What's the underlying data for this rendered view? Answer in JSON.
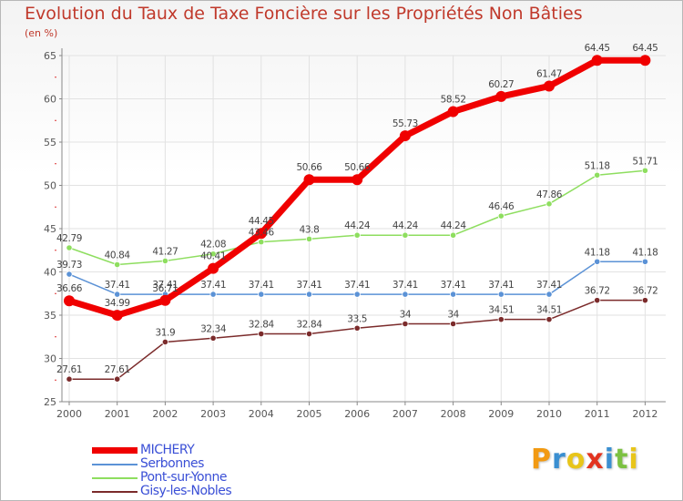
{
  "chart_data": {
    "type": "line",
    "title": "Evolution du Taux de Taxe Foncière sur les Propriétés Non Bâties",
    "ylabel": "(en %)",
    "xlabel": "",
    "x": [
      "2000",
      "2001",
      "2002",
      "2003",
      "2004",
      "2005",
      "2006",
      "2007",
      "2008",
      "2009",
      "2010",
      "2011",
      "2012"
    ],
    "ylim": [
      25,
      65
    ],
    "yticks": [
      25,
      30,
      35,
      40,
      45,
      50,
      55,
      60,
      65
    ],
    "grid": true,
    "legend_position": "bottom-left",
    "series": [
      {
        "name": "Pont-sur-Yonne",
        "color": "#8ede5f",
        "values": [
          42.79,
          40.84,
          41.27,
          42.08,
          43.46,
          43.8,
          44.24,
          44.24,
          44.24,
          46.46,
          47.86,
          51.18,
          51.71
        ],
        "labels": [
          "42.79",
          "40.84",
          "41.27",
          "42.08",
          "43.46",
          "43.8",
          "44.24",
          "44.24",
          "44.24",
          "46.46",
          "47.86",
          "51.18",
          "51.71"
        ]
      },
      {
        "name": "Gisy-les-Nobles",
        "color": "#7b2b2b",
        "values": [
          27.61,
          27.61,
          31.9,
          32.34,
          32.84,
          32.84,
          33.5,
          34,
          34,
          34.51,
          34.51,
          36.72,
          36.72
        ],
        "labels": [
          "27.61",
          "27.61",
          "31.9",
          "32.34",
          "32.84",
          "32.84",
          "33.5",
          "34",
          "34",
          "34.51",
          "34.51",
          "36.72",
          "36.72"
        ]
      },
      {
        "name": "Serbonnes",
        "color": "#5b92d6",
        "values": [
          39.73,
          37.41,
          37.41,
          37.41,
          37.41,
          37.41,
          37.41,
          37.41,
          37.41,
          37.41,
          37.41,
          41.18,
          41.18
        ],
        "labels": [
          "39.73",
          "37.41",
          "37.41",
          "37.41",
          "37.41",
          "37.41",
          "37.41",
          "37.41",
          "37.41",
          "37.41",
          "37.41",
          "41.18",
          "41.18"
        ]
      },
      {
        "name": "MICHERY",
        "color": "#f00000",
        "values": [
          36.66,
          34.99,
          36.71,
          40.41,
          44.45,
          50.66,
          50.66,
          55.73,
          58.52,
          60.27,
          61.47,
          64.45,
          64.45
        ],
        "labels": [
          "36.66",
          "34.99",
          "36.71",
          "40.41",
          "44.45",
          "50.66",
          "50.66",
          "55.73",
          "58.52",
          "60.27",
          "61.47",
          "64.45",
          "64.45"
        ]
      }
    ],
    "legend": [
      {
        "name": "MICHERY",
        "color": "#f00000",
        "weight": "heavy"
      },
      {
        "name": "Serbonnes",
        "color": "#5b92d6",
        "weight": "thin"
      },
      {
        "name": "Pont-sur-Yonne",
        "color": "#8ede5f",
        "weight": "thin"
      },
      {
        "name": "Gisy-les-Nobles",
        "color": "#7b2b2b",
        "weight": "thin"
      }
    ]
  },
  "brand": {
    "letters": [
      {
        "ch": "P",
        "color": "#f29a12"
      },
      {
        "ch": "r",
        "color": "#3a8fd1"
      },
      {
        "ch": "o",
        "color": "#e8c51a"
      },
      {
        "ch": "x",
        "color": "#e2331f"
      },
      {
        "ch": "i",
        "color": "#3a8fd1"
      },
      {
        "ch": "t",
        "color": "#7cc142"
      },
      {
        "ch": "i",
        "color": "#e8c51a"
      }
    ]
  },
  "colors": {
    "title": "#c0392b",
    "axis": "#888888",
    "grid": "#e2e2e2",
    "tick_mark": "#dd3333",
    "label": "#555555"
  }
}
